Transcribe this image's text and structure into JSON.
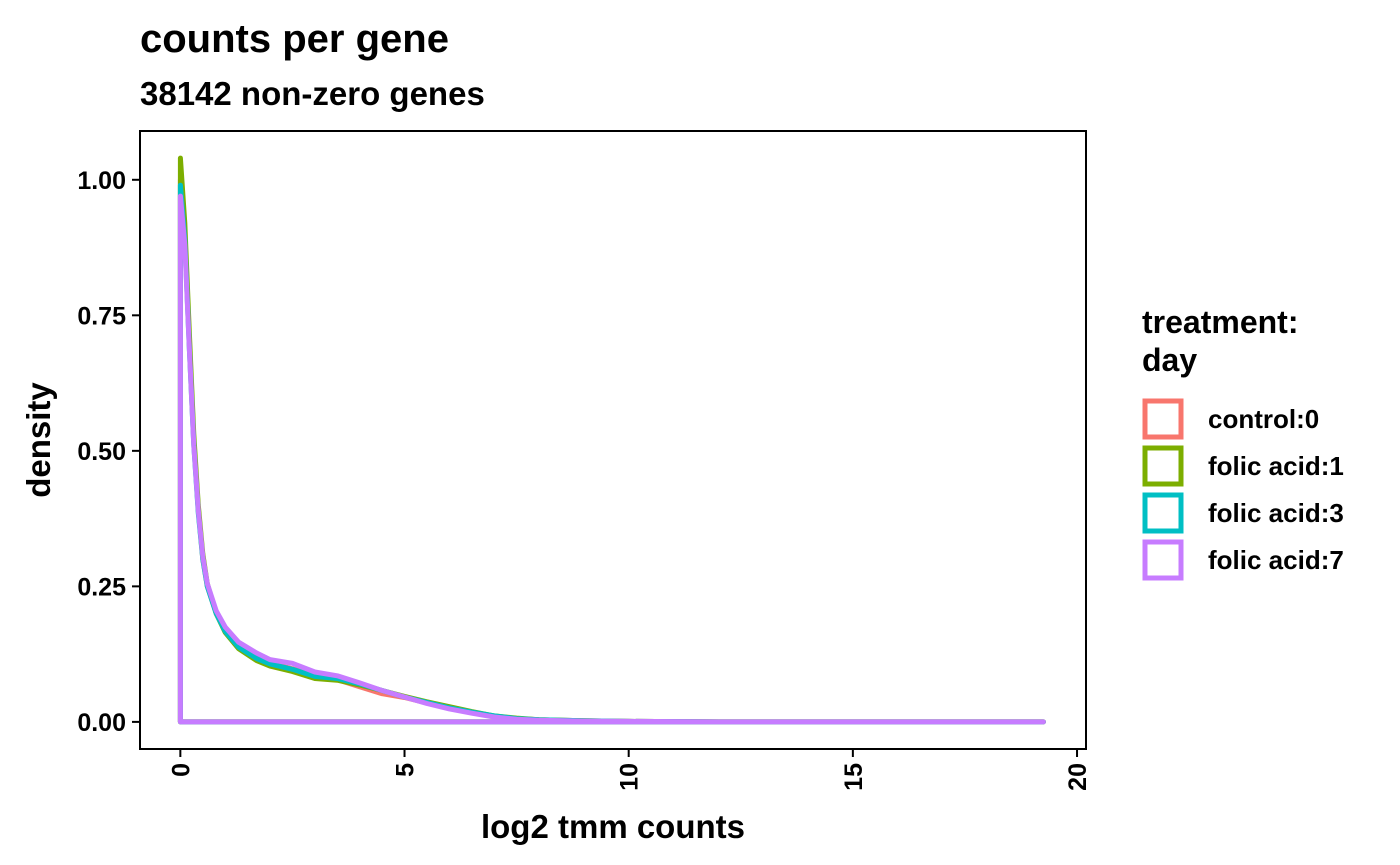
{
  "chart_data": {
    "type": "line",
    "title": "counts per gene",
    "subtitle": "38142 non-zero genes",
    "xlabel": "log2 tmm counts",
    "ylabel": "density",
    "xlim": [
      -0.9,
      20.2
    ],
    "ylim": [
      -0.05,
      1.09
    ],
    "x_ticks": [
      0,
      5,
      10,
      15,
      20
    ],
    "x_tick_labels": [
      "0",
      "5",
      "10",
      "15",
      "20"
    ],
    "y_ticks": [
      0,
      0.25,
      0.5,
      0.75,
      1.0
    ],
    "y_tick_labels": [
      "0.00",
      "0.25",
      "0.50",
      "0.75",
      "1.00"
    ],
    "grid": false,
    "legend": {
      "title_lines": [
        "treatment:",
        "day"
      ],
      "placement": "right"
    },
    "x_domain": [
      0,
      19.25
    ],
    "series": [
      {
        "name": "control:0",
        "color": "#F8766D",
        "points": [
          [
            0,
            1.0
          ],
          [
            0.1,
            0.9
          ],
          [
            0.2,
            0.7
          ],
          [
            0.3,
            0.52
          ],
          [
            0.4,
            0.39
          ],
          [
            0.5,
            0.3
          ],
          [
            0.6,
            0.25
          ],
          [
            0.8,
            0.2
          ],
          [
            1.0,
            0.17
          ],
          [
            1.3,
            0.14
          ],
          [
            1.7,
            0.12
          ],
          [
            2.0,
            0.108
          ],
          [
            2.5,
            0.098
          ],
          [
            3.0,
            0.085
          ],
          [
            3.5,
            0.078
          ],
          [
            4.0,
            0.065
          ],
          [
            4.5,
            0.052
          ],
          [
            5.0,
            0.045
          ],
          [
            5.5,
            0.035
          ],
          [
            6.0,
            0.025
          ],
          [
            6.5,
            0.017
          ],
          [
            7.0,
            0.01
          ],
          [
            7.5,
            0.006
          ],
          [
            8.0,
            0.004
          ],
          [
            9.0,
            0.002
          ],
          [
            10.0,
            0.001
          ],
          [
            12.0,
            0.0
          ],
          [
            19.25,
            0.0
          ]
        ]
      },
      {
        "name": "folic acid:1",
        "color": "#7CAE00",
        "points": [
          [
            0,
            1.04
          ],
          [
            0.1,
            0.92
          ],
          [
            0.2,
            0.72
          ],
          [
            0.3,
            0.53
          ],
          [
            0.4,
            0.4
          ],
          [
            0.5,
            0.31
          ],
          [
            0.6,
            0.255
          ],
          [
            0.8,
            0.2
          ],
          [
            1.0,
            0.165
          ],
          [
            1.3,
            0.135
          ],
          [
            1.7,
            0.113
          ],
          [
            2.0,
            0.103
          ],
          [
            2.5,
            0.093
          ],
          [
            3.0,
            0.08
          ],
          [
            3.5,
            0.077
          ],
          [
            4.0,
            0.068
          ],
          [
            4.5,
            0.058
          ],
          [
            5.0,
            0.047
          ],
          [
            5.5,
            0.037
          ],
          [
            6.0,
            0.028
          ],
          [
            6.5,
            0.019
          ],
          [
            7.0,
            0.011
          ],
          [
            7.5,
            0.007
          ],
          [
            8.0,
            0.004
          ],
          [
            9.0,
            0.002
          ],
          [
            10.0,
            0.001
          ],
          [
            12.0,
            0.0
          ],
          [
            19.25,
            0.0
          ]
        ]
      },
      {
        "name": "folic acid:3",
        "color": "#00BFC4",
        "points": [
          [
            0,
            0.99
          ],
          [
            0.1,
            0.89
          ],
          [
            0.2,
            0.69
          ],
          [
            0.3,
            0.51
          ],
          [
            0.4,
            0.385
          ],
          [
            0.5,
            0.3
          ],
          [
            0.6,
            0.25
          ],
          [
            0.8,
            0.2
          ],
          [
            1.0,
            0.167
          ],
          [
            1.3,
            0.138
          ],
          [
            1.7,
            0.117
          ],
          [
            2.0,
            0.107
          ],
          [
            2.5,
            0.097
          ],
          [
            3.0,
            0.084
          ],
          [
            3.5,
            0.08
          ],
          [
            4.0,
            0.07
          ],
          [
            4.5,
            0.058
          ],
          [
            5.0,
            0.046
          ],
          [
            5.5,
            0.036
          ],
          [
            6.0,
            0.026
          ],
          [
            6.5,
            0.018
          ],
          [
            7.0,
            0.011
          ],
          [
            7.5,
            0.006
          ],
          [
            8.0,
            0.004
          ],
          [
            9.0,
            0.002
          ],
          [
            10.0,
            0.001
          ],
          [
            12.0,
            0.0
          ],
          [
            19.25,
            0.0
          ]
        ]
      },
      {
        "name": "folic acid:7",
        "color": "#C77CFF",
        "points": [
          [
            0,
            0.97
          ],
          [
            0.1,
            0.88
          ],
          [
            0.2,
            0.69
          ],
          [
            0.3,
            0.51
          ],
          [
            0.4,
            0.39
          ],
          [
            0.5,
            0.305
          ],
          [
            0.6,
            0.255
          ],
          [
            0.8,
            0.205
          ],
          [
            1.0,
            0.175
          ],
          [
            1.3,
            0.147
          ],
          [
            1.7,
            0.127
          ],
          [
            2.0,
            0.115
          ],
          [
            2.5,
            0.108
          ],
          [
            3.0,
            0.092
          ],
          [
            3.5,
            0.085
          ],
          [
            4.0,
            0.072
          ],
          [
            4.5,
            0.058
          ],
          [
            5.0,
            0.046
          ],
          [
            5.5,
            0.034
          ],
          [
            6.0,
            0.024
          ],
          [
            6.5,
            0.016
          ],
          [
            7.0,
            0.009
          ],
          [
            7.5,
            0.005
          ],
          [
            8.0,
            0.003
          ],
          [
            9.0,
            0.0015
          ],
          [
            10.0,
            0.001
          ],
          [
            12.0,
            0.0
          ],
          [
            19.25,
            0.0
          ]
        ]
      }
    ]
  }
}
